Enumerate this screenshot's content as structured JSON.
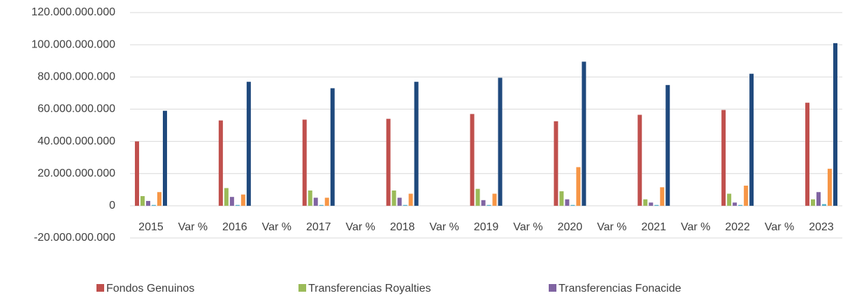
{
  "chart_data": {
    "type": "bar",
    "categories": [
      "2015",
      "Var %",
      "2016",
      "Var %",
      "2017",
      "Var %",
      "2018",
      "Var %",
      "2019",
      "Var %",
      "2020",
      "Var %",
      "2021",
      "Var %",
      "2022",
      "Var %",
      "2023"
    ],
    "series": [
      {
        "name": "Fondos Genuinos",
        "color": "#c0504d",
        "values": [
          40000000000,
          null,
          53000000000,
          null,
          53500000000,
          null,
          54000000000,
          null,
          57000000000,
          null,
          52500000000,
          null,
          56500000000,
          null,
          59500000000,
          null,
          64000000000
        ]
      },
      {
        "name": "Transferencias Royalties",
        "color": "#9bbb59",
        "values": [
          6000000000,
          null,
          11000000000,
          null,
          9500000000,
          null,
          9500000000,
          null,
          10500000000,
          null,
          9000000000,
          null,
          4000000000,
          null,
          7500000000,
          null,
          4000000000
        ]
      },
      {
        "name": "Transferencias Fonacide",
        "color": "#8064a2",
        "values": [
          3000000000,
          null,
          5500000000,
          null,
          5000000000,
          null,
          5000000000,
          null,
          3500000000,
          null,
          4000000000,
          null,
          2000000000,
          null,
          2000000000,
          null,
          8500000000
        ]
      },
      {
        "color": "#4bacc6",
        "values": [
          500000000,
          null,
          500000000,
          null,
          500000000,
          null,
          500000000,
          null,
          500000000,
          null,
          500000000,
          null,
          500000000,
          null,
          500000000,
          null,
          1000000000
        ]
      },
      {
        "color": "#f79646",
        "values": [
          8500000000,
          null,
          7000000000,
          null,
          5000000000,
          null,
          7500000000,
          null,
          7500000000,
          null,
          24000000000,
          null,
          11500000000,
          null,
          12500000000,
          null,
          23000000000
        ]
      },
      {
        "color": "#1f497d",
        "values": [
          59000000000,
          null,
          77000000000,
          null,
          73000000000,
          null,
          77000000000,
          null,
          79500000000,
          null,
          89500000000,
          null,
          75000000000,
          null,
          82000000000,
          null,
          101000000000
        ]
      }
    ],
    "ylim": [
      -20000000000,
      120000000000
    ],
    "yticks": [
      {
        "value": -20000000000,
        "label": "-20.000.000.000"
      },
      0,
      {
        "value": 20000000000,
        "label": "20.000.000.000"
      },
      {
        "value": 40000000000,
        "label": "40.000.000.000"
      },
      {
        "value": 60000000000,
        "label": "60.000.000.000"
      },
      {
        "value": 80000000000,
        "label": "80.000.000.000"
      },
      {
        "value": 100000000000,
        "label": "100.000.000.000"
      },
      {
        "value": 120000000000,
        "label": "120.000.000.000"
      }
    ],
    "grid": true,
    "legend": "bottom"
  }
}
